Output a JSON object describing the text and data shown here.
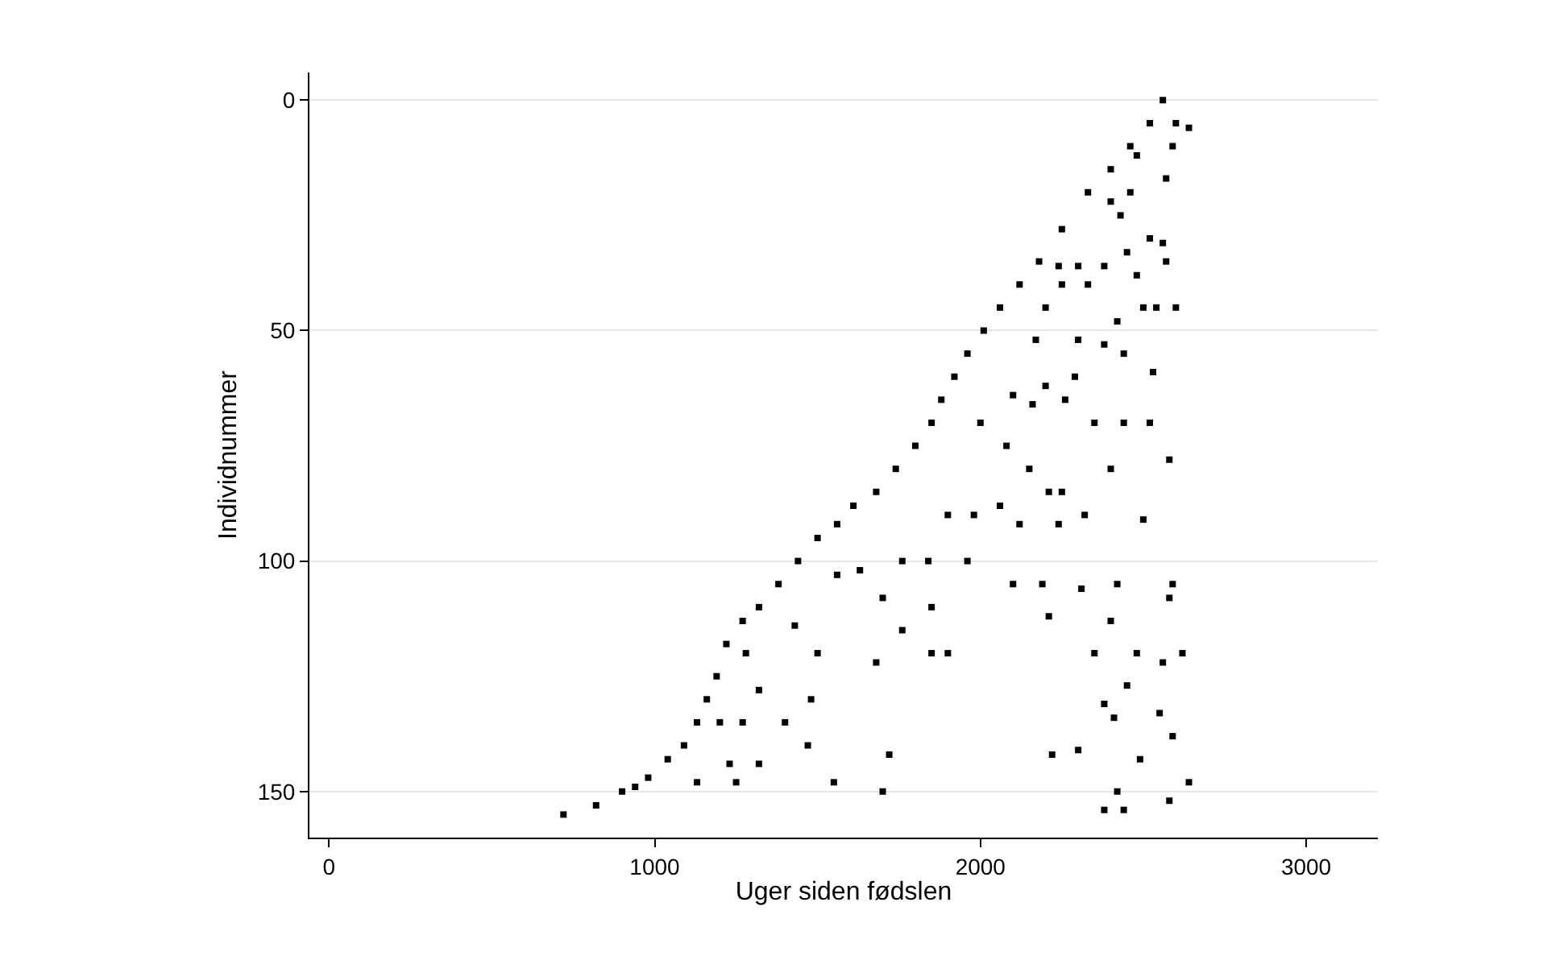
{
  "chart_data": {
    "type": "scatter",
    "xlabel": "Uger siden fødslen",
    "ylabel": "Individnummer",
    "xlim": [
      -60,
      3220
    ],
    "ylim": [
      160,
      -6
    ],
    "xticks": [
      0,
      1000,
      2000,
      3000
    ],
    "yticks": [
      0,
      50,
      100,
      150
    ],
    "grid": "y",
    "marker": "square",
    "series": [
      {
        "color": "#000000",
        "x": [
          2560,
          2520,
          2460,
          2400,
          2330,
          2250,
          2180,
          2120,
          2060,
          2010,
          1960,
          1920,
          1880,
          1850,
          1800,
          1740,
          1680,
          1610,
          1560,
          1500,
          1440,
          1380,
          1320,
          1270,
          1220,
          1190,
          1160,
          1130,
          1090,
          1040,
          980,
          940,
          900,
          820,
          720,
          2600,
          2640,
          2590,
          2570,
          2480,
          2460,
          2400,
          2430,
          2520,
          2560,
          2570,
          2450,
          2380,
          2300,
          2240,
          2250,
          2330,
          2480,
          2500,
          2540,
          2600,
          2420,
          2200,
          2170,
          2300,
          2380,
          2440,
          2530,
          2290,
          2200,
          2100,
          2160,
          2260,
          2350,
          2440,
          2520,
          2400,
          2580,
          2000,
          2080,
          2150,
          2210,
          2250,
          2060,
          1980,
          1900,
          2120,
          2240,
          2320,
          2500,
          1960,
          1840,
          1760,
          2100,
          2190,
          2310,
          2420,
          2590,
          1560,
          1630,
          1850,
          2210,
          2400,
          2580,
          1700,
          1760,
          1430,
          1500,
          1280,
          1680,
          1850,
          1900,
          2350,
          2480,
          2560,
          2620,
          1320,
          1480,
          2450,
          2380,
          2410,
          2550,
          1200,
          1270,
          1400,
          1470,
          2220,
          2300,
          2490,
          2590,
          1320,
          1230,
          1720,
          1130,
          1250,
          1550,
          1700,
          2420,
          2580,
          2380,
          2440,
          2640
        ],
        "values": [
          0,
          5,
          10,
          15,
          20,
          28,
          35,
          40,
          45,
          50,
          55,
          60,
          65,
          70,
          75,
          80,
          85,
          88,
          92,
          95,
          100,
          105,
          110,
          113,
          118,
          125,
          130,
          135,
          140,
          143,
          147,
          149,
          150,
          153,
          155,
          5,
          6,
          10,
          17,
          12,
          20,
          22,
          25,
          30,
          31,
          35,
          33,
          36,
          36,
          36,
          40,
          40,
          38,
          45,
          45,
          45,
          48,
          45,
          52,
          52,
          53,
          55,
          59,
          60,
          62,
          64,
          66,
          65,
          70,
          70,
          70,
          80,
          78,
          70,
          75,
          80,
          85,
          85,
          88,
          90,
          90,
          92,
          92,
          90,
          91,
          100,
          100,
          100,
          105,
          105,
          106,
          105,
          105,
          103,
          102,
          110,
          112,
          113,
          108,
          108,
          115,
          114,
          120,
          120,
          122,
          120,
          120,
          120,
          120,
          122,
          120,
          128,
          130,
          127,
          131,
          134,
          133,
          135,
          135,
          135,
          140,
          142,
          141,
          143,
          138,
          144,
          144,
          142,
          148,
          148,
          148,
          150,
          150,
          152,
          154,
          154,
          148
        ]
      }
    ]
  }
}
